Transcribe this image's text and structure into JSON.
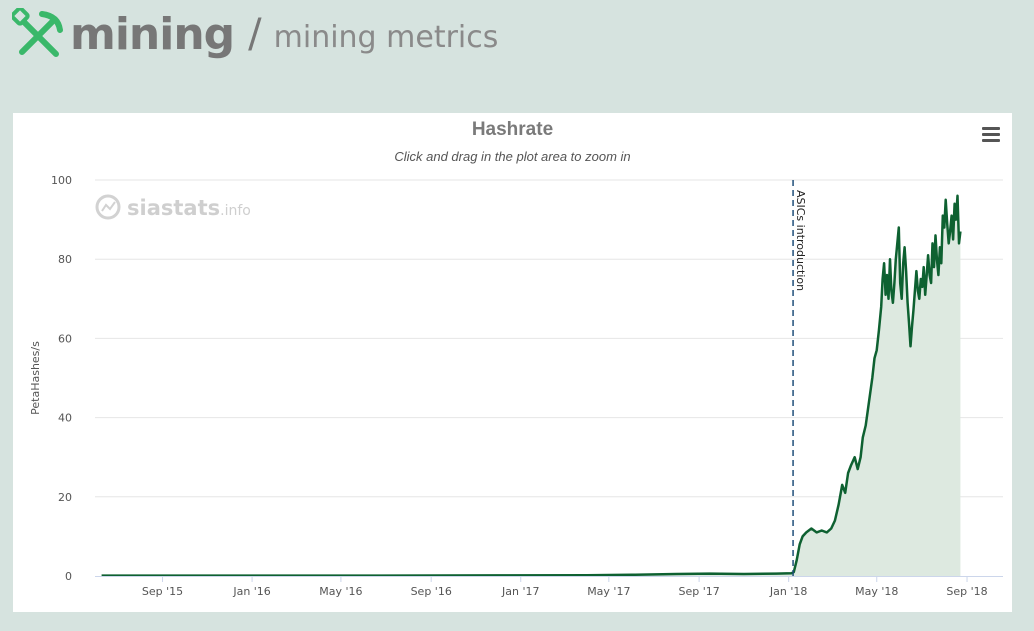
{
  "header": {
    "title": "mining",
    "separator": "/",
    "subtitle": "mining metrics",
    "logo_icon": "pickaxe-shovel-icon"
  },
  "chart": {
    "title": "Hashrate",
    "subtitle": "Click and drag in the plot area to zoom in",
    "menu_icon": "hamburger-menu-icon",
    "watermark_text": "siastats",
    "watermark_suffix": ".info",
    "colors": {
      "line": "#0e6131",
      "fill": "#dde9e0",
      "annotation": "#1f4e79",
      "watermark": "#cfcfcf"
    }
  },
  "chart_data": {
    "type": "area",
    "title": "Hashrate",
    "xlabel": "",
    "ylabel": "PetaHashes/s",
    "ylim": [
      0,
      100
    ],
    "yticks": [
      0,
      20,
      40,
      60,
      80,
      100
    ],
    "xlim": [
      "2015-06-01",
      "2018-10-20"
    ],
    "xticks": [
      {
        "date": "2015-09-01",
        "label": "Sep '15"
      },
      {
        "date": "2016-01-01",
        "label": "Jan '16"
      },
      {
        "date": "2016-05-01",
        "label": "May '16"
      },
      {
        "date": "2016-09-01",
        "label": "Sep '16"
      },
      {
        "date": "2017-01-01",
        "label": "Jan '17"
      },
      {
        "date": "2017-05-01",
        "label": "May '17"
      },
      {
        "date": "2017-09-01",
        "label": "Sep '17"
      },
      {
        "date": "2018-01-01",
        "label": "Jan '18"
      },
      {
        "date": "2018-05-01",
        "label": "May '18"
      },
      {
        "date": "2018-09-01",
        "label": "Sep '18"
      }
    ],
    "annotation": {
      "date": "2018-01-07",
      "label": "ASICs introduction"
    },
    "series": [
      {
        "name": "Hashrate",
        "points": [
          [
            "2015-06-10",
            0.1
          ],
          [
            "2015-12-01",
            0.1
          ],
          [
            "2016-06-01",
            0.1
          ],
          [
            "2016-12-01",
            0.15
          ],
          [
            "2017-04-01",
            0.2
          ],
          [
            "2017-06-01",
            0.3
          ],
          [
            "2017-08-01",
            0.5
          ],
          [
            "2017-09-15",
            0.6
          ],
          [
            "2017-11-01",
            0.5
          ],
          [
            "2017-12-15",
            0.6
          ],
          [
            "2018-01-05",
            0.7
          ],
          [
            "2018-01-08",
            1.0
          ],
          [
            "2018-01-12",
            4
          ],
          [
            "2018-01-16",
            8
          ],
          [
            "2018-01-20",
            10
          ],
          [
            "2018-01-25",
            11
          ],
          [
            "2018-02-01",
            12
          ],
          [
            "2018-02-08",
            11
          ],
          [
            "2018-02-15",
            11.5
          ],
          [
            "2018-02-22",
            11
          ],
          [
            "2018-02-28",
            12
          ],
          [
            "2018-03-05",
            14
          ],
          [
            "2018-03-10",
            18
          ],
          [
            "2018-03-15",
            23
          ],
          [
            "2018-03-19",
            21
          ],
          [
            "2018-03-23",
            26
          ],
          [
            "2018-03-27",
            28
          ],
          [
            "2018-04-01",
            30
          ],
          [
            "2018-04-05",
            27
          ],
          [
            "2018-04-09",
            30
          ],
          [
            "2018-04-12",
            35
          ],
          [
            "2018-04-16",
            38
          ],
          [
            "2018-04-19",
            42
          ],
          [
            "2018-04-22",
            46
          ],
          [
            "2018-04-25",
            50
          ],
          [
            "2018-04-28",
            55
          ],
          [
            "2018-05-01",
            57
          ],
          [
            "2018-05-04",
            62
          ],
          [
            "2018-05-07",
            68
          ],
          [
            "2018-05-09",
            75
          ],
          [
            "2018-05-11",
            79
          ],
          [
            "2018-05-13",
            71
          ],
          [
            "2018-05-15",
            76
          ],
          [
            "2018-05-17",
            70
          ],
          [
            "2018-05-19",
            80
          ],
          [
            "2018-05-21",
            72
          ],
          [
            "2018-05-23",
            69
          ],
          [
            "2018-05-25",
            74
          ],
          [
            "2018-05-27",
            80
          ],
          [
            "2018-05-29",
            84
          ],
          [
            "2018-05-31",
            88
          ],
          [
            "2018-06-02",
            74
          ],
          [
            "2018-06-04",
            70
          ],
          [
            "2018-06-06",
            79
          ],
          [
            "2018-06-08",
            83
          ],
          [
            "2018-06-10",
            77
          ],
          [
            "2018-06-12",
            69
          ],
          [
            "2018-06-14",
            64
          ],
          [
            "2018-06-16",
            58
          ],
          [
            "2018-06-18",
            63
          ],
          [
            "2018-06-20",
            67
          ],
          [
            "2018-06-22",
            72
          ],
          [
            "2018-06-24",
            77
          ],
          [
            "2018-06-26",
            72
          ],
          [
            "2018-06-28",
            70
          ],
          [
            "2018-06-30",
            75
          ],
          [
            "2018-07-02",
            73
          ],
          [
            "2018-07-04",
            78
          ],
          [
            "2018-07-06",
            71
          ],
          [
            "2018-07-08",
            76
          ],
          [
            "2018-07-10",
            81
          ],
          [
            "2018-07-12",
            76
          ],
          [
            "2018-07-14",
            74
          ],
          [
            "2018-07-16",
            84
          ],
          [
            "2018-07-18",
            78
          ],
          [
            "2018-07-20",
            86
          ],
          [
            "2018-07-22",
            80
          ],
          [
            "2018-07-24",
            76
          ],
          [
            "2018-07-26",
            83
          ],
          [
            "2018-07-28",
            79
          ],
          [
            "2018-07-30",
            91
          ],
          [
            "2018-08-01",
            88
          ],
          [
            "2018-08-03",
            95
          ],
          [
            "2018-08-05",
            89
          ],
          [
            "2018-08-07",
            84
          ],
          [
            "2018-08-09",
            87
          ],
          [
            "2018-08-11",
            91
          ],
          [
            "2018-08-13",
            85
          ],
          [
            "2018-08-15",
            94
          ],
          [
            "2018-08-17",
            90
          ],
          [
            "2018-08-19",
            96
          ],
          [
            "2018-08-21",
            84
          ],
          [
            "2018-08-23",
            87
          ]
        ]
      }
    ]
  }
}
